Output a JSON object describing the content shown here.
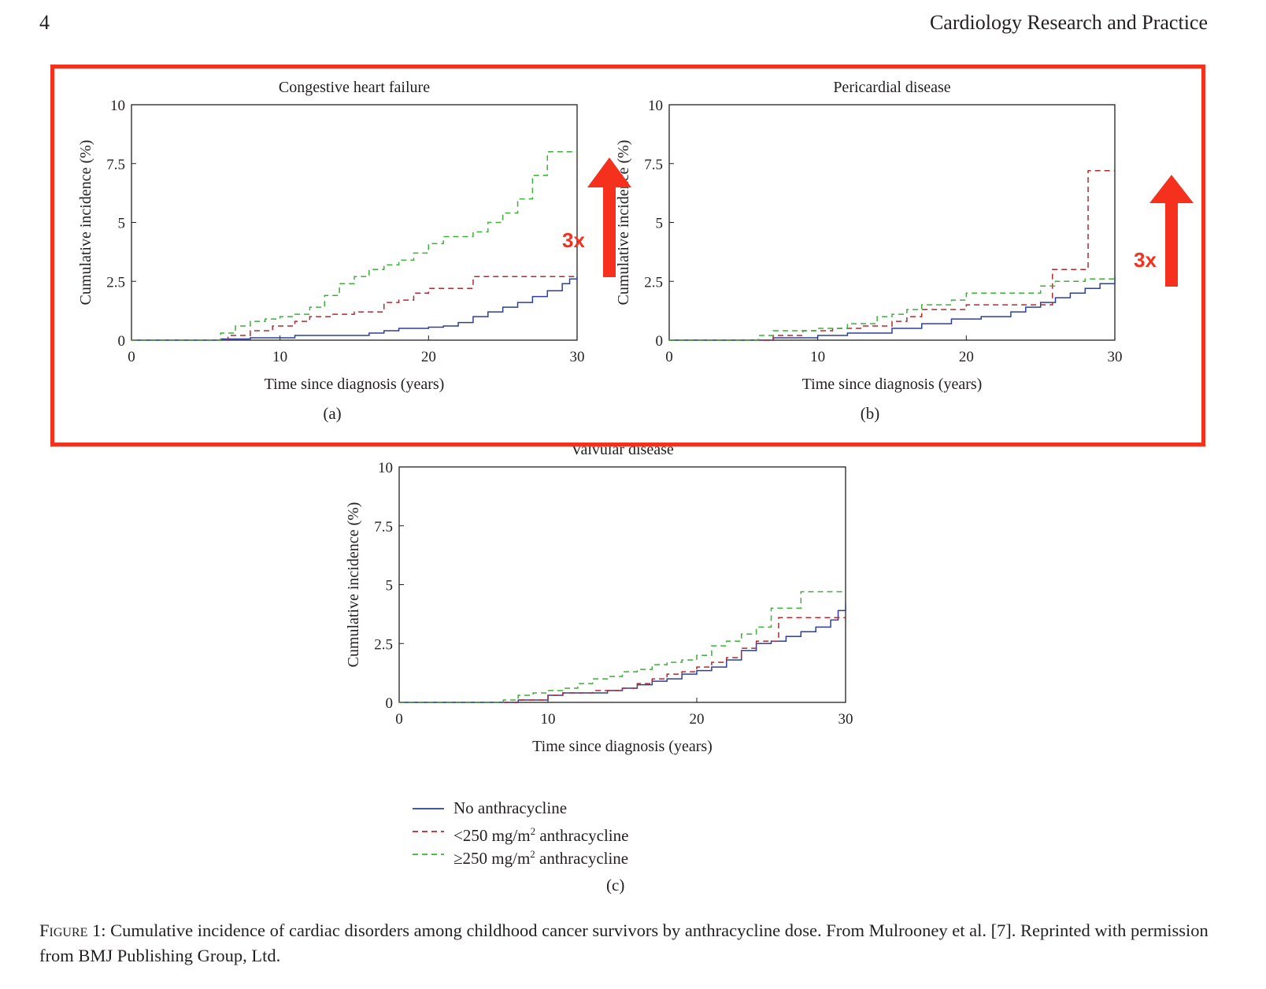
{
  "header": {
    "page_number": "4",
    "journal": "Cardiology Research and Practice"
  },
  "chart_data": [
    {
      "type": "line",
      "panel": "(a)",
      "title": "Congestive heart failure",
      "xlabel": "Time since diagnosis (years)",
      "ylabel": "Cumulative incidence (%)",
      "xlim": [
        0,
        30
      ],
      "ylim": [
        0,
        10
      ],
      "xticks": [
        "0",
        "10",
        "20",
        "30"
      ],
      "yticks": [
        "0",
        "2.5",
        "5",
        "7.5",
        "10"
      ],
      "series": [
        {
          "key": "none",
          "x": [
            0,
            5,
            6,
            8,
            11,
            16,
            17,
            18,
            20,
            21,
            22,
            23,
            24,
            25,
            26,
            27,
            28,
            29,
            29.5,
            30
          ],
          "y": [
            0,
            0,
            0.05,
            0.1,
            0.2,
            0.3,
            0.4,
            0.5,
            0.55,
            0.6,
            0.75,
            1.0,
            1.2,
            1.4,
            1.6,
            1.85,
            2.1,
            2.4,
            2.6,
            2.7
          ]
        },
        {
          "key": "low",
          "x": [
            0,
            5,
            6.5,
            8,
            9.5,
            11,
            12,
            13.5,
            15,
            17,
            18,
            19,
            20,
            23,
            30
          ],
          "y": [
            0,
            0,
            0.2,
            0.4,
            0.6,
            0.8,
            1.0,
            1.1,
            1.2,
            1.6,
            1.7,
            2.0,
            2.2,
            2.7,
            2.7
          ]
        },
        {
          "key": "high",
          "x": [
            0,
            5,
            6,
            7,
            8,
            9,
            10,
            11,
            12,
            13,
            14,
            15,
            16,
            17,
            18,
            19,
            20,
            21,
            23,
            24,
            25,
            26,
            27,
            28,
            30
          ],
          "y": [
            0,
            0,
            0.3,
            0.6,
            0.8,
            0.9,
            1.0,
            1.1,
            1.4,
            1.9,
            2.4,
            2.7,
            3.0,
            3.2,
            3.4,
            3.7,
            4.1,
            4.4,
            4.6,
            5.0,
            5.4,
            6.0,
            7.0,
            8.0,
            8.0
          ]
        }
      ],
      "annotation": "3x"
    },
    {
      "type": "line",
      "panel": "(b)",
      "title": "Pericardial disease",
      "xlabel": "Time since diagnosis (years)",
      "ylabel": "Cumulative incidence (%)",
      "xlim": [
        0,
        30
      ],
      "ylim": [
        0,
        10
      ],
      "xticks": [
        "0",
        "10",
        "20",
        "30"
      ],
      "yticks": [
        "0",
        "2.5",
        "5",
        "7.5",
        "10"
      ],
      "series": [
        {
          "key": "none",
          "x": [
            0,
            5,
            7,
            10,
            12,
            15,
            17,
            19,
            21,
            23,
            24,
            25,
            26,
            27,
            28,
            29,
            30
          ],
          "y": [
            0,
            0,
            0.1,
            0.2,
            0.3,
            0.5,
            0.7,
            0.9,
            1.0,
            1.2,
            1.4,
            1.6,
            1.8,
            2.0,
            2.2,
            2.4,
            2.7
          ]
        },
        {
          "key": "low",
          "x": [
            0,
            5,
            7,
            9,
            11,
            13,
            15,
            16,
            17,
            20,
            23,
            25.8,
            28.2,
            30
          ],
          "y": [
            0,
            0,
            0.2,
            0.4,
            0.5,
            0.6,
            0.8,
            1.0,
            1.3,
            1.5,
            1.5,
            3.0,
            7.2,
            7.2
          ]
        },
        {
          "key": "high",
          "x": [
            0,
            5,
            6,
            7,
            10,
            12,
            14,
            15,
            16,
            17,
            19,
            20,
            23,
            25,
            26,
            28,
            30
          ],
          "y": [
            0,
            0,
            0.2,
            0.4,
            0.5,
            0.7,
            1.0,
            1.1,
            1.3,
            1.5,
            1.7,
            2.0,
            2.0,
            2.3,
            2.5,
            2.6,
            2.6
          ]
        }
      ],
      "annotation": "3x"
    },
    {
      "type": "line",
      "panel": "(c)",
      "title": "Valvular disease",
      "xlabel": "Time since diagnosis (years)",
      "ylabel": "Cumulative incidence (%)",
      "xlim": [
        0,
        30
      ],
      "ylim": [
        0,
        10
      ],
      "xticks": [
        "0",
        "10",
        "20",
        "30"
      ],
      "yticks": [
        "0",
        "2.5",
        "5",
        "7.5",
        "10"
      ],
      "series": [
        {
          "key": "none",
          "x": [
            0,
            5,
            8,
            10,
            11,
            14,
            15,
            16,
            17,
            18,
            19,
            20,
            21,
            22,
            23,
            24,
            25,
            26,
            27,
            28,
            29,
            29.5,
            30
          ],
          "y": [
            0,
            0,
            0.1,
            0.3,
            0.4,
            0.5,
            0.6,
            0.75,
            0.9,
            1.0,
            1.2,
            1.35,
            1.5,
            1.8,
            2.2,
            2.5,
            2.6,
            2.8,
            3.0,
            3.2,
            3.5,
            3.9,
            4.2
          ]
        },
        {
          "key": "low",
          "x": [
            0,
            5,
            8,
            10,
            11,
            13,
            15,
            16,
            17,
            18,
            19,
            20,
            21,
            22,
            23,
            24,
            25.5,
            30
          ],
          "y": [
            0,
            0,
            0.1,
            0.3,
            0.4,
            0.5,
            0.6,
            0.8,
            1.0,
            1.2,
            1.3,
            1.5,
            1.7,
            1.9,
            2.3,
            2.6,
            3.6,
            3.6
          ]
        },
        {
          "key": "high",
          "x": [
            0,
            5,
            7,
            8,
            9,
            10,
            11,
            12,
            13,
            14,
            15,
            16,
            17,
            18,
            19,
            20,
            21,
            22,
            23,
            24,
            25,
            27,
            30
          ],
          "y": [
            0,
            0,
            0.1,
            0.3,
            0.4,
            0.5,
            0.6,
            0.8,
            1.0,
            1.1,
            1.3,
            1.4,
            1.6,
            1.7,
            1.8,
            2.0,
            2.4,
            2.6,
            2.9,
            3.2,
            4.0,
            4.7,
            4.7
          ]
        }
      ]
    }
  ],
  "legend": {
    "items": [
      {
        "key": "none",
        "label": "No anthracycline",
        "color": "#2e3f9b",
        "dash": "solid"
      },
      {
        "key": "low",
        "label_pre": "<250 mg/m",
        "sup": "2",
        "label_post": " anthracycline",
        "color": "#b22a2e",
        "dash": "dashed"
      },
      {
        "key": "high",
        "label_pre": "≥250 mg/m",
        "sup": "2",
        "label_post": " anthracycline",
        "color": "#3fae3a",
        "dash": "dashed"
      }
    ]
  },
  "caption": {
    "label": "Figure 1:",
    "text": " Cumulative incidence of cardiac disorders among childhood cancer survivors by anthracycline dose. From Mulrooney et al. [7]. Reprinted with permission from BMJ Publishing Group, Ltd."
  },
  "highlight_color": "#f5311e"
}
